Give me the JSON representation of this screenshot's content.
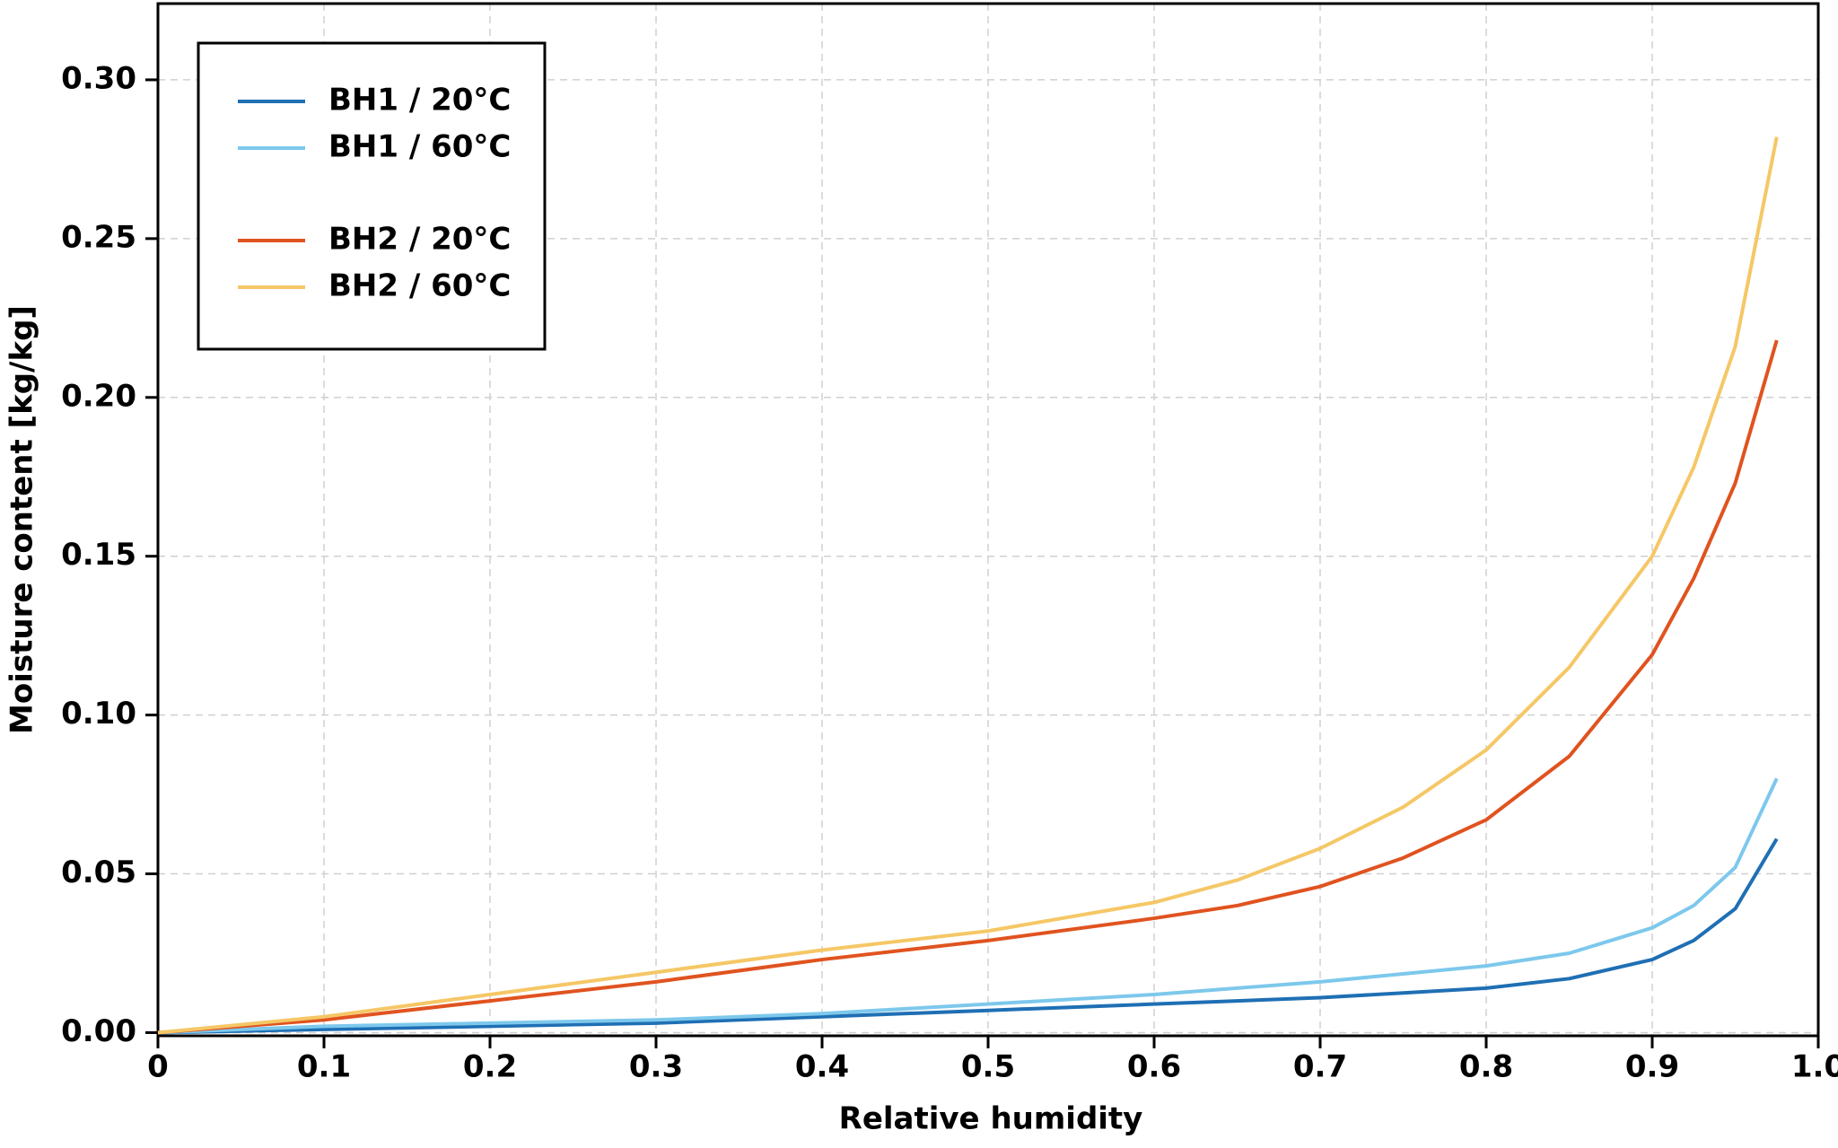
{
  "chart_data": {
    "type": "line",
    "xlabel": "Relative humidity",
    "ylabel": "Moisture content [kg/kg]",
    "x": [
      0,
      0.1,
      0.2,
      0.3,
      0.4,
      0.5,
      0.6,
      0.65,
      0.7,
      0.75,
      0.8,
      0.85,
      0.9,
      0.925,
      0.95,
      0.975
    ],
    "series": [
      {
        "name": "BH1 / 20°C",
        "color": "#1f6fb4",
        "values": [
          0,
          0.001,
          0.002,
          0.003,
          0.005,
          0.007,
          0.009,
          0.01,
          0.011,
          0.0125,
          0.014,
          0.017,
          0.023,
          0.029,
          0.039,
          0.061
        ]
      },
      {
        "name": "BH1 / 60°C",
        "color": "#7dc8ec",
        "values": [
          0,
          0.002,
          0.003,
          0.004,
          0.006,
          0.009,
          0.012,
          0.014,
          0.016,
          0.0185,
          0.021,
          0.025,
          0.033,
          0.04,
          0.052,
          0.08
        ]
      },
      {
        "name": "BH2 / 20°C",
        "color": "#e0531f",
        "values": [
          0,
          0.004,
          0.01,
          0.016,
          0.023,
          0.029,
          0.036,
          0.04,
          0.046,
          0.055,
          0.067,
          0.087,
          0.119,
          0.143,
          0.173,
          0.218
        ]
      },
      {
        "name": "BH2 / 60°C",
        "color": "#f5c766",
        "values": [
          0,
          0.005,
          0.012,
          0.019,
          0.026,
          0.032,
          0.041,
          0.048,
          0.058,
          0.071,
          0.089,
          0.115,
          0.15,
          0.178,
          0.216,
          0.282
        ]
      }
    ],
    "xlim": [
      0,
      1
    ],
    "ylim": [
      -0.001,
      0.324
    ],
    "xticks": [
      0,
      0.1,
      0.2,
      0.3,
      0.4,
      0.5,
      0.6,
      0.7,
      0.8,
      0.9,
      {
        "value": 1,
        "label": "1.0"
      }
    ],
    "yticks": [
      {
        "value": 0,
        "label": "0.00"
      },
      {
        "value": 0.05,
        "label": "0.05"
      },
      {
        "value": 0.1,
        "label": "0.10"
      },
      {
        "value": 0.15,
        "label": "0.15"
      },
      {
        "value": 0.2,
        "label": "0.20"
      },
      {
        "value": 0.25,
        "label": "0.25"
      },
      {
        "value": 0.3,
        "label": "0.30"
      }
    ],
    "grid": true,
    "legend": "upper-left"
  }
}
